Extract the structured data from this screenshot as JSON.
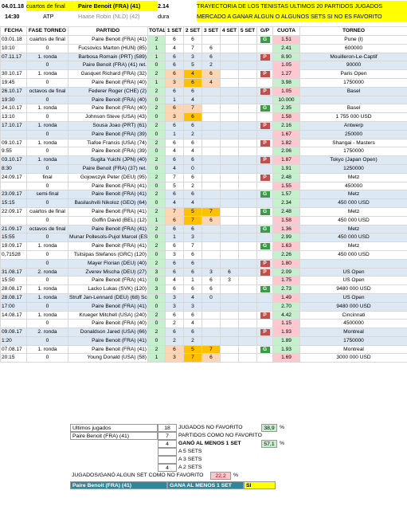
{
  "header": {
    "date": "04.01.18",
    "round": "cuartos de final",
    "match": "Paire Benoit (FRA) (41)",
    "odds": "2.14",
    "note1": "TRAYECTORIA DE LOS TENISTAS ULTIMOS 20 PARTIDOS JUGADOS",
    "time": "14:30",
    "tour": "ATP",
    "opponent": "Haase Robin (NLD) (42)",
    "surface": "dura",
    "note2": "MERCADO A GANAR ALGUN O ALGUNOS SETS SI NO ES FAVORITO"
  },
  "columns": [
    "FECHA",
    "FASE TORNEO",
    "PARTIDO",
    "TOTAL SET",
    "1 SET",
    "2 SET",
    "3 SET",
    "4 SET",
    "5 SET",
    "G/P",
    "CUOTA",
    "TORNEO"
  ],
  "rows": [
    {
      "fecha": "03.01.18",
      "fase": "cuartos de final",
      "partido": "Paire Benoit (FRA) (41)",
      "total": "2",
      "s1": "6",
      "s2": "6",
      "s3": "",
      "s4": "",
      "s5": "",
      "gp": "G",
      "cuota": "1.51",
      "torneo": "Pune (I)",
      "s1c": "",
      "s2c": "",
      "s3c": "",
      "cuotac": "pk"
    },
    {
      "fecha": "10:10",
      "fase": "0",
      "partido": "Fucsovics Marton (HUN) (85)",
      "total": "1",
      "s1": "4",
      "s2": "7",
      "s3": "6",
      "s4": "",
      "s5": "",
      "gp": "",
      "cuota": "2.41",
      "torneo": "600000",
      "s1c": "",
      "s2c": "",
      "s3c": "",
      "cuotac": "gr"
    },
    {
      "fecha": "07.11.17",
      "fase": "1. ronda",
      "partido": "Barbosa Romain (PRT) (589)",
      "total": "1",
      "s1": "6",
      "s2": "3",
      "s3": "6",
      "s4": "",
      "s5": "",
      "gp": "P",
      "cuota": "8.90",
      "torneo": "Mouilleron-Le-Captif",
      "s1c": "",
      "s2c": "",
      "s3c": "",
      "cuotac": "gr"
    },
    {
      "fecha": "",
      "fase": "0",
      "partido": "Paire Benoit (FRA) (41) ret.",
      "total": "0",
      "s1": "6",
      "s2": "5",
      "s3": "2",
      "s4": "",
      "s5": "",
      "gp": "",
      "cuota": "1.05",
      "torneo": "90000",
      "s1c": "",
      "s2c": "",
      "s3c": "",
      "cuotac": "pk"
    },
    {
      "fecha": "30.10.17",
      "fase": "1. ronda",
      "partido": "Gasquet Richard (FRA) (32)",
      "total": "2",
      "s1": "6",
      "s2": "4",
      "s3": "6",
      "s4": "",
      "s5": "",
      "gp": "P",
      "cuota": "1.27",
      "torneo": "Paris Open",
      "s1c": "or",
      "s2c": "org",
      "s3c": "or",
      "cuotac": "pk"
    },
    {
      "fecha": "19:45",
      "fase": "0",
      "partido": "Paire Benoit (FRA) (40)",
      "total": "1",
      "s1": "3",
      "s2": "6",
      "s3": "4",
      "s4": "",
      "s5": "",
      "gp": "",
      "cuota": "3.98",
      "torneo": "1750000",
      "s1c": "or",
      "s2c": "org",
      "s3c": "or",
      "cuotac": "gr"
    },
    {
      "fecha": "26.10.17",
      "fase": "octavos de final",
      "partido": "Federer Roger (CHE) (2)",
      "total": "2",
      "s1": "6",
      "s2": "6",
      "s3": "",
      "s4": "",
      "s5": "",
      "gp": "P",
      "cuota": "1.05",
      "torneo": "Basel",
      "s1c": "",
      "s2c": "",
      "s3c": "",
      "cuotac": "pk"
    },
    {
      "fecha": "19:30",
      "fase": "0",
      "partido": "Paire Benoit (FRA) (40)",
      "total": "0",
      "s1": "1",
      "s2": "4",
      "s3": "",
      "s4": "",
      "s5": "",
      "gp": "",
      "cuota": "10.000",
      "torneo": "",
      "s1c": "",
      "s2c": "",
      "s3c": "",
      "cuotac": "gr"
    },
    {
      "fecha": "24.10.17",
      "fase": "1. ronda",
      "partido": "Paire Benoit (FRA) (40)",
      "total": "2",
      "s1": "6",
      "s2": "7",
      "s3": "",
      "s4": "",
      "s5": "",
      "gp": "G",
      "cuota": "2.35",
      "torneo": "Basel",
      "s1c": "or",
      "s2c": "or",
      "s3c": "",
      "cuotac": "gr"
    },
    {
      "fecha": "13:10",
      "fase": "0",
      "partido": "Johnson Steve (USA) (43)",
      "total": "0",
      "s1": "3",
      "s2": "6",
      "s3": "",
      "s4": "",
      "s5": "",
      "gp": "",
      "cuota": "1.58",
      "torneo": "1 755 000 USD",
      "s1c": "or",
      "s2c": "org",
      "s3c": "",
      "cuotac": "pk"
    },
    {
      "fecha": "17.10.17",
      "fase": "1. ronda",
      "partido": "Sousa Joao (PRT) (61)",
      "total": "2",
      "s1": "6",
      "s2": "6",
      "s3": "",
      "s4": "",
      "s5": "",
      "gp": "P",
      "cuota": "2.16",
      "torneo": "Antwerp",
      "s1c": "",
      "s2c": "",
      "s3c": "",
      "cuotac": "gr"
    },
    {
      "fecha": "",
      "fase": "0",
      "partido": "Paire Benoit (FRA) (39)",
      "total": "0",
      "s1": "1",
      "s2": "2",
      "s3": "",
      "s4": "",
      "s5": "",
      "gp": "",
      "cuota": "1.67",
      "torneo": "250000",
      "s1c": "",
      "s2c": "",
      "s3c": "",
      "cuotac": "pk"
    },
    {
      "fecha": "09.10.17",
      "fase": "1. ronda",
      "partido": "Tiafoe Francis (USA) (74)",
      "total": "2",
      "s1": "6",
      "s2": "6",
      "s3": "",
      "s4": "",
      "s5": "",
      "gp": "P",
      "cuota": "1.82",
      "torneo": "Shangai - Masters",
      "s1c": "",
      "s2c": "",
      "s3c": "",
      "cuotac": "pk"
    },
    {
      "fecha": "9:55",
      "fase": "0",
      "partido": "Paire Benoit (FRA) (39)",
      "total": "0",
      "s1": "4",
      "s2": "4",
      "s3": "",
      "s4": "",
      "s5": "",
      "gp": "",
      "cuota": "2.06",
      "torneo": "1750000",
      "s1c": "",
      "s2c": "",
      "s3c": "",
      "cuotac": "gr"
    },
    {
      "fecha": "03.10.17",
      "fase": "1. ronda",
      "partido": "Sugita Yuichi (JPN) (40)",
      "total": "2",
      "s1": "6",
      "s2": "6",
      "s3": "",
      "s4": "",
      "s5": "",
      "gp": "P",
      "cuota": "1.87",
      "torneo": "Tokyo (Japan Open)",
      "s1c": "",
      "s2c": "",
      "s3c": "",
      "cuotac": "pk"
    },
    {
      "fecha": "8:30",
      "fase": "0",
      "partido": "Paire Benoit (FRA) (37) ret.",
      "total": "0",
      "s1": "4",
      "s2": "0",
      "s3": "",
      "s4": "",
      "s5": "",
      "gp": "",
      "cuota": "1.91",
      "torneo": "1250000",
      "s1c": "",
      "s2c": "",
      "s3c": "",
      "cuotac": "gr"
    },
    {
      "fecha": "24.09.17",
      "fase": "final",
      "partido": "Gojowczyk Peter (DEU) (95)",
      "total": "2",
      "s1": "7",
      "s2": "6",
      "s3": "",
      "s4": "",
      "s5": "",
      "gp": "P",
      "cuota": "2.48",
      "torneo": "Metz",
      "s1c": "",
      "s2c": "",
      "s3c": "",
      "cuotac": "gr"
    },
    {
      "fecha": "",
      "fase": "0",
      "partido": "Paire Benoit (FRA) (41)",
      "total": "0",
      "s1": "5",
      "s2": "2",
      "s3": "",
      "s4": "",
      "s5": "",
      "gp": "",
      "cuota": "1.55",
      "torneo": "450000",
      "s1c": "",
      "s2c": "",
      "s3c": "",
      "cuotac": "pk"
    },
    {
      "fecha": "23.09.17",
      "fase": "semi-final",
      "partido": "Paire Benoit (FRA) (41)",
      "total": "2",
      "s1": "6",
      "s2": "6",
      "s3": "",
      "s4": "",
      "s5": "",
      "gp": "G",
      "cuota": "1.57",
      "torneo": "Metz",
      "s1c": "",
      "s2c": "",
      "s3c": "",
      "cuotac": "gr"
    },
    {
      "fecha": "15:15",
      "fase": "0",
      "partido": "Basilashvili Nikoloz (GEO) (64)",
      "total": "0",
      "s1": "4",
      "s2": "4",
      "s3": "",
      "s4": "",
      "s5": "",
      "gp": "",
      "cuota": "2.34",
      "torneo": "450 000 USD",
      "s1c": "",
      "s2c": "",
      "s3c": "",
      "cuotac": "gr"
    },
    {
      "fecha": "22.09.17",
      "fase": "cuartos de final",
      "partido": "Paire Benoit (FRA) (41)",
      "total": "2",
      "s1": "7",
      "s2": "5",
      "s3": "7",
      "s4": "",
      "s5": "",
      "gp": "G",
      "cuota": "2.48",
      "torneo": "Metz",
      "s1c": "or",
      "s2c": "org",
      "s3c": "org",
      "cuotac": "gr"
    },
    {
      "fecha": "",
      "fase": "0",
      "partido": "Goffin David (BEL) (12)",
      "total": "1",
      "s1": "6",
      "s2": "7",
      "s3": "6",
      "s4": "",
      "s5": "",
      "gp": "",
      "cuota": "1.58",
      "torneo": "450 000 USD",
      "s1c": "or",
      "s2c": "org",
      "s3c": "or",
      "cuotac": "pk"
    },
    {
      "fecha": "21.09.17",
      "fase": "octavos de final",
      "partido": "Paire Benoit (FRA) (41)",
      "total": "2",
      "s1": "6",
      "s2": "6",
      "s3": "",
      "s4": "",
      "s5": "",
      "gp": "G",
      "cuota": "1.36",
      "torneo": "Metz",
      "s1c": "",
      "s2c": "",
      "s3c": "",
      "cuotac": "pk"
    },
    {
      "fecha": "15:55",
      "fase": "0",
      "partido": "Munar Pollesols-Pujol Marcel (ESP) (136)",
      "total": "0",
      "s1": "1",
      "s2": "3",
      "s3": "",
      "s4": "",
      "s5": "",
      "gp": "",
      "cuota": "2.99",
      "torneo": "450 000 USD",
      "s1c": "",
      "s2c": "",
      "s3c": "",
      "cuotac": "gr"
    },
    {
      "fecha": "19.09.17",
      "fase": "1. ronda",
      "partido": "Paire Benoit (FRA) (41)",
      "total": "2",
      "s1": "6",
      "s2": "7",
      "s3": "",
      "s4": "",
      "s5": "",
      "gp": "G",
      "cuota": "1.63",
      "torneo": "Metz",
      "s1c": "",
      "s2c": "",
      "s3c": "",
      "cuotac": "pk"
    },
    {
      "fecha": "0,71528",
      "fase": "0",
      "partido": "Tsitsipas Stefanos (GRC) (120)",
      "total": "0",
      "s1": "3",
      "s2": "6",
      "s3": "",
      "s4": "",
      "s5": "",
      "gp": "",
      "cuota": "2.26",
      "torneo": "450 000 USD",
      "s1c": "",
      "s2c": "",
      "s3c": "",
      "cuotac": "gr"
    },
    {
      "fecha": "",
      "fase": "0",
      "partido": "Mayer Florian (DEU) (40)",
      "total": "2",
      "s1": "6",
      "s2": "6",
      "s3": "",
      "s4": "",
      "s5": "",
      "gp": "P",
      "cuota": "1.80",
      "torneo": "",
      "s1c": "",
      "s2c": "",
      "s3c": "",
      "cuotac": "pk"
    },
    {
      "fecha": "31.08.17",
      "fase": "2. ronda",
      "partido": "Zverev Mischa (DEU) (27)",
      "total": "3",
      "s1": "6",
      "s2": "6",
      "s3": "3",
      "s4": "6",
      "s5": "",
      "gp": "P",
      "cuota": "2.09",
      "torneo": "US Open",
      "s1c": "",
      "s2c": "",
      "s3c": "",
      "cuotac": "gr"
    },
    {
      "fecha": "15:50",
      "fase": "0",
      "partido": "Paire Benoit (FRA) (41)",
      "total": "0",
      "s1": "4",
      "s2": "1",
      "s3": "6",
      "s4": "3",
      "s5": "",
      "gp": "",
      "cuota": "1.75",
      "torneo": "US Open",
      "s1c": "",
      "s2c": "",
      "s3c": "",
      "cuotac": "pk"
    },
    {
      "fecha": "28.08.17",
      "fase": "1. ronda",
      "partido": "Lacko Lukas (SVK) (120)",
      "total": "3",
      "s1": "6",
      "s2": "6",
      "s3": "6",
      "s4": "",
      "s5": "",
      "gp": "G",
      "cuota": "2.73",
      "torneo": "9480 000 USD",
      "s1c": "",
      "s2c": "",
      "s3c": "",
      "cuotac": "gr"
    },
    {
      "fecha": "28.08.17",
      "fase": "1. ronda",
      "partido": "Struff Jan-Lennard (DEU) (68) Schleher Philipp (DEU) (217)",
      "total": "0",
      "s1": "3",
      "s2": "4",
      "s3": "0",
      "s4": "",
      "s5": "",
      "gp": "",
      "cuota": "1.49",
      "torneo": "US Open",
      "s1c": "",
      "s2c": "",
      "s3c": "",
      "cuotac": "pk"
    },
    {
      "fecha": "17:00",
      "fase": "0",
      "partido": "Paire Benoit (FRA) (41)",
      "total": "0",
      "s1": "3",
      "s2": "3",
      "s3": "",
      "s4": "",
      "s5": "",
      "gp": "",
      "cuota": "2.70",
      "torneo": "9480 000 USD",
      "s1c": "",
      "s2c": "",
      "s3c": "",
      "cuotac": "gr"
    },
    {
      "fecha": "14.08.17",
      "fase": "1. ronda",
      "partido": "Krueger Mitchell (USA) (240)",
      "total": "2",
      "s1": "6",
      "s2": "6",
      "s3": "",
      "s4": "",
      "s5": "",
      "gp": "P",
      "cuota": "4.42",
      "torneo": "Cincinnati",
      "s1c": "",
      "s2c": "",
      "s3c": "",
      "cuotac": "gr"
    },
    {
      "fecha": "",
      "fase": "0",
      "partido": "Paire Benoit (FRA) (40)",
      "total": "0",
      "s1": "2",
      "s2": "4",
      "s3": "",
      "s4": "",
      "s5": "",
      "gp": "",
      "cuota": "1.15",
      "torneo": "4500000",
      "s1c": "",
      "s2c": "",
      "s3c": "",
      "cuotac": "pk"
    },
    {
      "fecha": "09.08.17",
      "fase": "2. ronda",
      "partido": "Donaldson Jared (USA) (66)",
      "total": "2",
      "s1": "6",
      "s2": "6",
      "s3": "",
      "s4": "",
      "s5": "",
      "gp": "P",
      "cuota": "1.93",
      "torneo": "Montreal",
      "s1c": "",
      "s2c": "",
      "s3c": "",
      "cuotac": "pk"
    },
    {
      "fecha": "1:20",
      "fase": "0",
      "partido": "Paire Benoit (FRA) (41)",
      "total": "0",
      "s1": "2",
      "s2": "2",
      "s3": "",
      "s4": "",
      "s5": "",
      "gp": "",
      "cuota": "1.89",
      "torneo": "1750000",
      "s1c": "",
      "s2c": "",
      "s3c": "",
      "cuotac": "gr"
    },
    {
      "fecha": "07.08.17",
      "fase": "1. ronda",
      "partido": "Paire Benoit (FRA) (41)",
      "total": "2",
      "s1": "6",
      "s2": "5",
      "s3": "7",
      "s4": "",
      "s5": "",
      "gp": "G",
      "cuota": "1.93",
      "torneo": "Montreal",
      "s1c": "or",
      "s2c": "org",
      "s3c": "org",
      "cuotac": "gr"
    },
    {
      "fecha": "20:15",
      "fase": "0",
      "partido": "Young Donald (USA) (58)",
      "total": "1",
      "s1": "3",
      "s2": "7",
      "s3": "6",
      "s4": "",
      "s5": "",
      "gp": "",
      "cuota": "1.69",
      "torneo": "3000 000 USD",
      "s1c": "or",
      "s2c": "org",
      "s3c": "or",
      "cuotac": "pk"
    }
  ],
  "summary": {
    "played_label": "Ultimos jugados",
    "played_value": "18",
    "non_fav_label": "JUGADOS NO FAVORITO",
    "non_fav_pct": "38,9",
    "pct_sign": "%",
    "player_label": "Paire Benoit (FRA) (41)",
    "non_fav_count": "7",
    "non_fav_matches_label": "PARTIDOS COMO NO FAVORITO",
    "won_one_set_count": "4",
    "won_one_set_label": "GANÓ AL MENOS 1 SET",
    "won_one_set_pct": "57,1",
    "five_sets_count": "",
    "five_sets_label": "A 5 SETS",
    "three_sets_count": "",
    "three_sets_label": "A 3 SETS",
    "two_sets_count": "4",
    "two_sets_label": "A 2 SETS",
    "won_non_fav_label": "JUGADOS/GANÓ ALGUN SET COMO NO FAVORITO",
    "won_non_fav_pct": "22,2",
    "final_player": "Paire Benoit (FRA) (41)",
    "final_label": "GANA AL MENOS 1 SET",
    "final_value": "SI"
  }
}
